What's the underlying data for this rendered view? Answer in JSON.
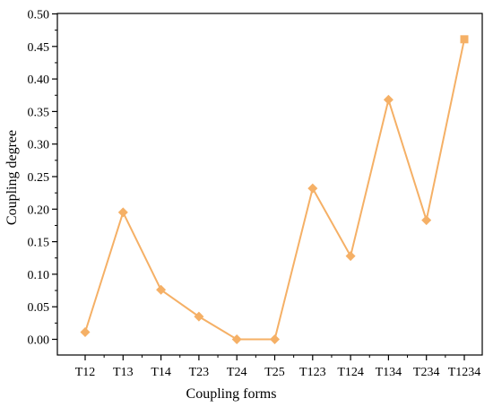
{
  "chart_data": {
    "type": "line",
    "xlabel": "Coupling forms",
    "ylabel": "Coupling degree",
    "categories": [
      "T12",
      "T13",
      "T14",
      "T23",
      "T24",
      "T25",
      "T123",
      "T124",
      "T134",
      "T234",
      "T1234"
    ],
    "series": [
      {
        "values": [
          0.011,
          0.195,
          0.076,
          0.035,
          0.0,
          0.0,
          0.232,
          0.128,
          0.368,
          0.183,
          0.461
        ],
        "markers": [
          "diamond",
          "diamond",
          "diamond",
          "diamond",
          "diamond",
          "diamond",
          "diamond",
          "diamond",
          "diamond",
          "diamond",
          "square"
        ],
        "color": "#F5B066"
      }
    ],
    "ylim": [
      -0.03,
      0.5
    ],
    "yticks": [
      "0.00",
      "0.05",
      "0.10",
      "0.15",
      "0.20",
      "0.25",
      "0.30",
      "0.35",
      "0.40",
      "0.45",
      "0.50"
    ],
    "grid": false,
    "legend": false
  }
}
